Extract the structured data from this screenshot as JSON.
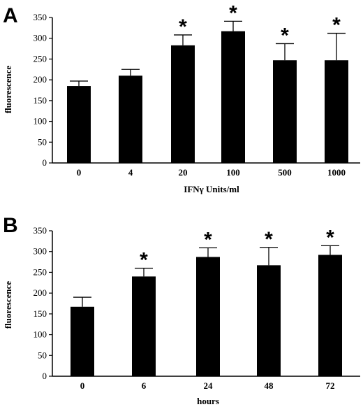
{
  "chart_data": [
    {
      "panel": "A",
      "type": "bar",
      "xlabel": "IFNγ Units/ml",
      "ylabel": "fluorescence",
      "categories": [
        "0",
        "4",
        "20",
        "100",
        "500",
        "1000"
      ],
      "values": [
        185,
        210,
        283,
        317,
        247,
        247
      ],
      "errors": [
        12,
        15,
        25,
        24,
        40,
        65
      ],
      "significant": [
        false,
        false,
        true,
        true,
        true,
        true
      ],
      "significance_mark": "*",
      "ylim": [
        0,
        350
      ],
      "yticks": [
        "0",
        "50",
        "100",
        "150",
        "200",
        "250",
        "300",
        "350"
      ],
      "grid": false,
      "bar_color": "#000000"
    },
    {
      "panel": "B",
      "type": "bar",
      "xlabel": "hours",
      "ylabel": "fluorescence",
      "categories": [
        "0",
        "6",
        "24",
        "48",
        "72"
      ],
      "values": [
        167,
        240,
        287,
        267,
        292
      ],
      "errors": [
        23,
        20,
        22,
        43,
        22
      ],
      "significant": [
        false,
        true,
        true,
        true,
        true
      ],
      "significance_mark": "*",
      "ylim": [
        0,
        350
      ],
      "yticks": [
        "0",
        "50",
        "100",
        "150",
        "200",
        "250",
        "300",
        "350"
      ],
      "grid": false,
      "bar_color": "#000000"
    }
  ]
}
